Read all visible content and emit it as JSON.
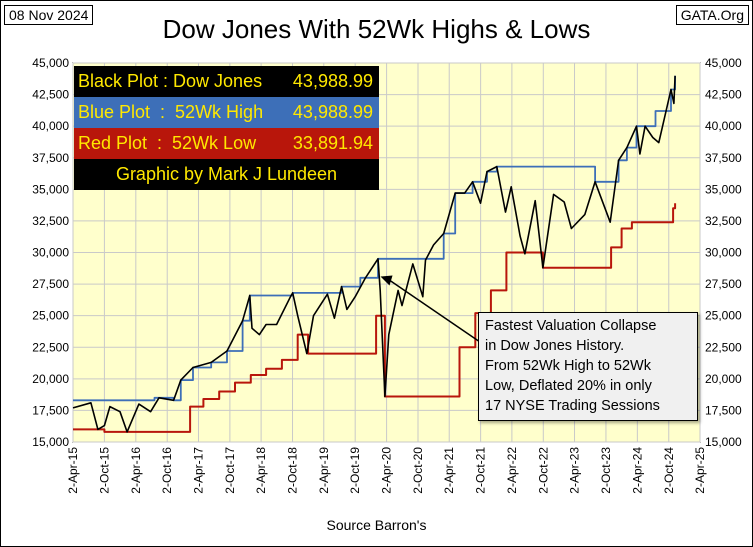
{
  "header": {
    "date": "08 Nov 2024",
    "source": "GATA.Org",
    "title": "Dow Jones With 52Wk Highs & Lows"
  },
  "legend": {
    "black": {
      "label": "Black Plot : Dow Jones",
      "value": "43,988.99"
    },
    "blue": {
      "label": "Blue Plot  :  52Wk High",
      "value": "43,988.99"
    },
    "red": {
      "label": "Red Plot  :  52Wk Low",
      "value": "33,891.94"
    },
    "credit": "Graphic by Mark J Lundeen"
  },
  "annotation": {
    "lines": [
      "Fastest Valuation Collapse",
      "in Dow Jones History.",
      "From 52Wk High to 52Wk",
      "Low, Deflated 20% in only",
      "17 NYSE Trading Sessions"
    ]
  },
  "colors": {
    "plot_background": "#ffffcc",
    "dow": "#000000",
    "high": "#3d6fb8",
    "low": "#b8160b",
    "legend_text": "#ffe800",
    "grid": "#c9c9c9"
  },
  "chart_data": {
    "type": "line",
    "title": "Dow Jones With 52Wk Highs & Lows",
    "xlabel": "Source Barron's",
    "ylabel": "",
    "ylim": [
      15000,
      45000
    ],
    "y_ticks": [
      "15,000",
      "17,500",
      "20,000",
      "22,500",
      "25,000",
      "27,500",
      "30,000",
      "32,500",
      "35,000",
      "37,500",
      "40,000",
      "42,500",
      "45,000"
    ],
    "x_ticks": [
      "2-Apr-15",
      "2-Oct-15",
      "2-Apr-16",
      "2-Oct-16",
      "2-Apr-17",
      "2-Oct-17",
      "2-Apr-18",
      "2-Oct-18",
      "2-Apr-19",
      "2-Oct-19",
      "2-Apr-20",
      "2-Oct-20",
      "2-Apr-21",
      "2-Oct-21",
      "2-Apr-22",
      "2-Oct-22",
      "2-Apr-23",
      "2-Oct-23",
      "2-Apr-24",
      "2-Oct-24",
      "2-Apr-25"
    ],
    "grid": true,
    "legend": "top-left",
    "series": [
      {
        "name": "Dow Jones",
        "x": [
          "2015-04-02",
          "2015-07-15",
          "2015-08-25",
          "2015-10-02",
          "2015-11-03",
          "2016-01-01",
          "2016-02-11",
          "2016-04-20",
          "2016-06-27",
          "2016-08-15",
          "2016-11-08",
          "2016-12-20",
          "2017-03-01",
          "2017-06-15",
          "2017-09-15",
          "2017-12-15",
          "2018-01-26",
          "2018-02-08",
          "2018-03-23",
          "2018-05-01",
          "2018-07-01",
          "2018-09-20",
          "2018-10-03",
          "2018-11-01",
          "2018-12-24",
          "2019-02-01",
          "2019-04-23",
          "2019-06-03",
          "2019-07-15",
          "2019-08-15",
          "2019-10-02",
          "2019-12-01",
          "2020-02-12",
          "2020-02-25",
          "2020-03-23",
          "2020-04-15",
          "2020-06-08",
          "2020-07-01",
          "2020-09-02",
          "2020-10-30",
          "2020-11-15",
          "2021-01-01",
          "2021-03-01",
          "2021-05-07",
          "2021-07-01",
          "2021-08-16",
          "2021-10-01",
          "2021-11-08",
          "2022-01-04",
          "2022-02-24",
          "2022-03-29",
          "2022-05-20",
          "2022-06-17",
          "2022-08-16",
          "2022-09-30",
          "2022-12-01",
          "2023-02-01",
          "2023-03-15",
          "2023-06-01",
          "2023-07-31",
          "2023-10-27",
          "2023-12-15",
          "2024-02-01",
          "2024-03-28",
          "2024-04-17",
          "2024-05-17",
          "2024-07-01",
          "2024-08-05",
          "2024-10-15",
          "2024-11-01",
          "2024-11-08"
        ],
        "y": [
          17700,
          18100,
          16000,
          16300,
          17800,
          17400,
          15800,
          18000,
          17400,
          18500,
          18300,
          19900,
          20900,
          21300,
          22200,
          24600,
          26600,
          24000,
          23500,
          24300,
          24300,
          26500,
          26800,
          25000,
          22000,
          25000,
          26700,
          24800,
          27300,
          25500,
          26500,
          28000,
          29500,
          27000,
          18600,
          23500,
          27000,
          25800,
          29100,
          26500,
          29400,
          30600,
          31500,
          34700,
          34700,
          35600,
          33900,
          36400,
          36800,
          33200,
          35200,
          31300,
          29900,
          34100,
          28800,
          34600,
          34000,
          31900,
          33000,
          35600,
          32400,
          37300,
          38300,
          40000,
          37800,
          40000,
          39100,
          38700,
          42900,
          41800,
          43988.99
        ]
      },
      {
        "name": "52Wk High",
        "x": [
          "2015-04-02",
          "2016-01-01",
          "2016-07-01",
          "2016-07-20",
          "2016-11-08",
          "2016-12-20",
          "2017-03-01",
          "2017-06-15",
          "2017-09-15",
          "2017-12-15",
          "2018-01-26",
          "2018-09-20",
          "2018-10-03",
          "2019-04-23",
          "2019-07-15",
          "2019-11-01",
          "2020-02-12",
          "2021-02-10",
          "2021-03-01",
          "2021-05-07",
          "2021-08-16",
          "2021-11-08",
          "2022-01-04",
          "2023-01-04",
          "2023-07-31",
          "2023-12-15",
          "2024-02-01",
          "2024-03-28",
          "2024-05-17",
          "2024-07-17",
          "2024-10-15",
          "2024-11-08"
        ],
        "y": [
          18300,
          18300,
          18300,
          18500,
          18300,
          19900,
          20900,
          21300,
          22200,
          24600,
          26600,
          26600,
          26800,
          26800,
          27300,
          28000,
          29500,
          29500,
          31500,
          34700,
          35600,
          36400,
          36800,
          36800,
          35600,
          37300,
          38300,
          40000,
          40000,
          41200,
          42900,
          43988.99
        ]
      },
      {
        "name": "52Wk Low",
        "x": [
          "2015-04-02",
          "2015-08-25",
          "2015-10-02",
          "2016-02-11",
          "2017-02-12",
          "2017-05-01",
          "2017-08-01",
          "2017-11-01",
          "2018-02-01",
          "2018-05-01",
          "2018-08-01",
          "2018-11-01",
          "2019-01-01",
          "2019-12-24",
          "2020-02-01",
          "2020-03-23",
          "2021-03-23",
          "2021-06-01",
          "2021-09-01",
          "2021-12-01",
          "2022-03-01",
          "2022-06-17",
          "2022-09-30",
          "2023-09-30",
          "2023-11-01",
          "2024-01-01",
          "2024-03-01",
          "2024-06-01",
          "2024-09-01",
          "2024-10-27",
          "2024-11-08"
        ],
        "y": [
          16000,
          16000,
          15800,
          15800,
          17800,
          18400,
          19000,
          19700,
          20300,
          20800,
          21500,
          23500,
          22000,
          22000,
          25000,
          18600,
          18600,
          22500,
          25200,
          27000,
          30000,
          30000,
          28800,
          28800,
          30400,
          31900,
          32400,
          32400,
          32400,
          33500,
          33891.94
        ]
      }
    ]
  }
}
